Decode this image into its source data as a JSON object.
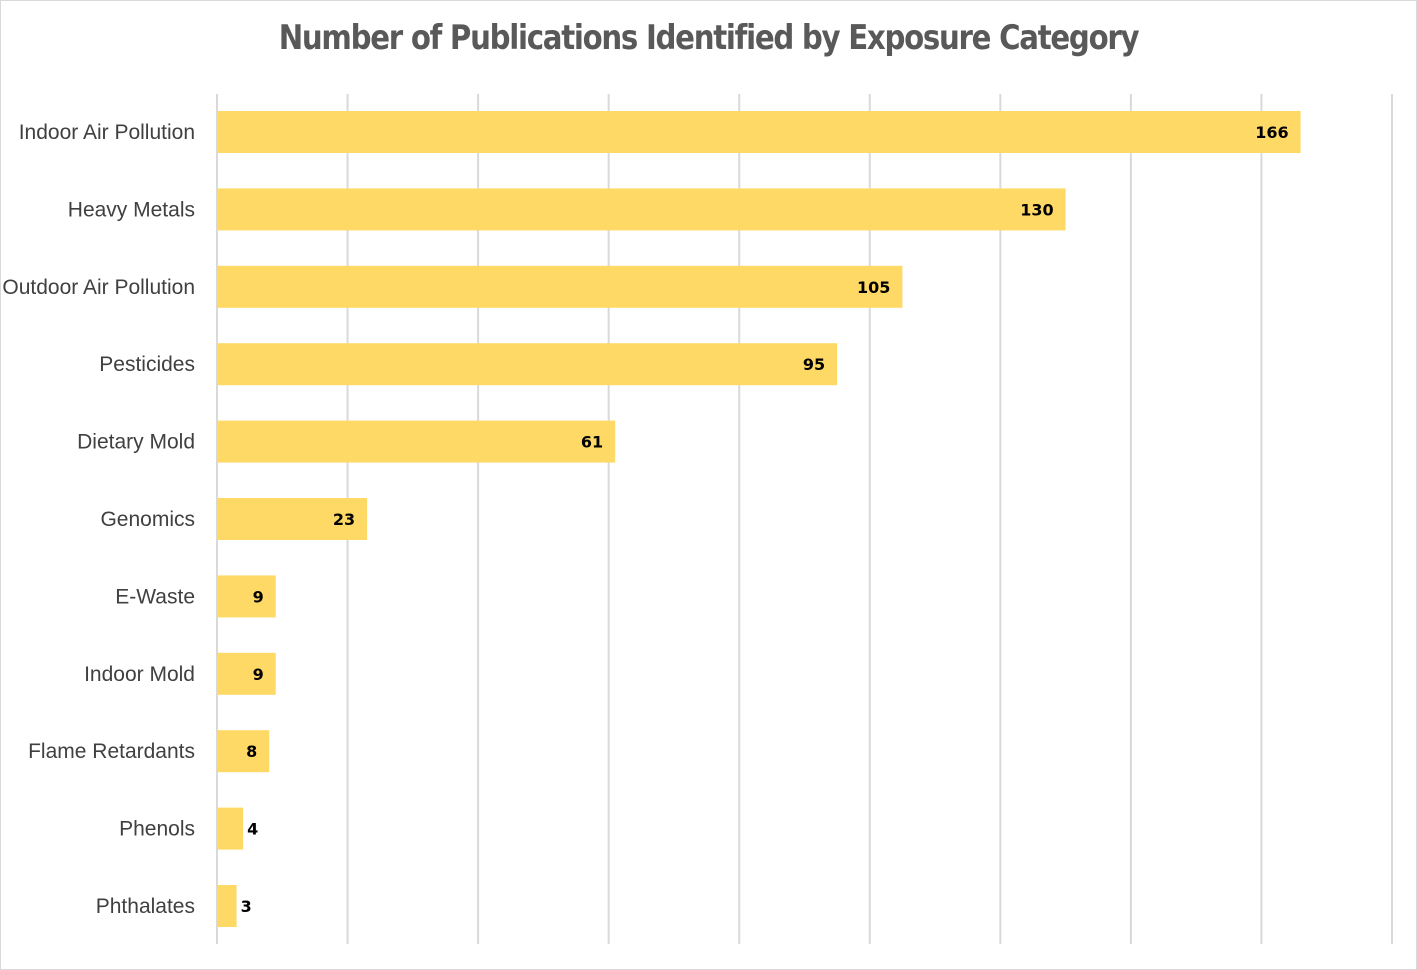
{
  "chart_data": {
    "type": "bar",
    "orientation": "horizontal",
    "title": "Number of Publications Identified by Exposure Category",
    "categories": [
      "Indoor Air Pollution",
      "Heavy Metals",
      "Outdoor Air Pollution",
      "Pesticides",
      "Dietary Mold",
      "Genomics",
      "E-Waste",
      "Indoor Mold",
      "Flame Retardants",
      "Phenols",
      "Phthalates"
    ],
    "values": [
      166,
      130,
      105,
      95,
      61,
      23,
      9,
      9,
      8,
      4,
      3
    ],
    "xlim": [
      0,
      180
    ],
    "grid": "vertical",
    "data_labels": true,
    "bar_color": "#FFD966",
    "gridline_color": "#d9d9d9",
    "legend": "none"
  }
}
